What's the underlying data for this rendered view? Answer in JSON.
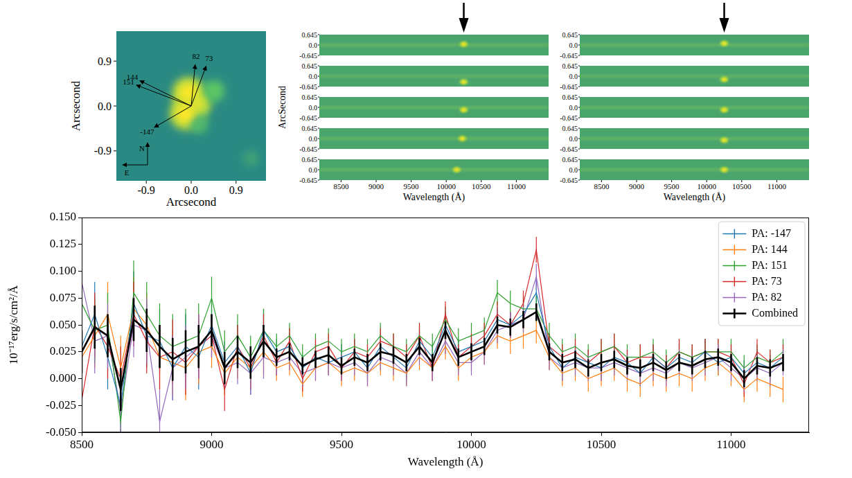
{
  "chart_data": [
    {
      "type": "image",
      "xlabel": "Arcsecond",
      "ylabel": "Arcsecond",
      "xlim": [
        -1.5,
        1.5
      ],
      "ylim": [
        -1.5,
        1.5
      ],
      "xticks": [
        -0.9,
        {
          "value": 0,
          "label": "0.0"
        },
        0.9
      ],
      "yticks": [
        -0.9,
        {
          "value": 0,
          "label": "0.0"
        },
        0.9
      ],
      "sources": [
        {
          "x": -0.05,
          "y": 0.25,
          "brightness": 1.0
        },
        {
          "x": -0.1,
          "y": -0.15,
          "brightness": 1.0
        },
        {
          "x": 0.1,
          "y": 0.05,
          "brightness": 0.9
        },
        {
          "x": 0.45,
          "y": 0.3,
          "brightness": 0.5
        },
        {
          "x": 0.15,
          "y": -0.35,
          "brightness": 0.4
        },
        {
          "x": 1.2,
          "y": -1.05,
          "brightness": 0.2
        }
      ],
      "arrows": [
        {
          "label": "82",
          "x": 0.08,
          "y": 0.83
        },
        {
          "label": "73",
          "x": 0.3,
          "y": 0.8
        },
        {
          "label": "144",
          "x": -1.03,
          "y": 0.51
        },
        {
          "label": "151",
          "x": -1.1,
          "y": 0.42
        },
        {
          "label": "-147",
          "x": -0.74,
          "y": -0.43
        }
      ],
      "compass": {
        "north": "N",
        "east": "E"
      }
    },
    {
      "type": "image_grid",
      "xlabel": "Wavelength (Å)",
      "ylabel": "ArcSecond",
      "xlim": [
        8190,
        11460
      ],
      "ylim": [
        -0.645,
        0.645
      ],
      "xticks": [
        8500,
        9000,
        9500,
        10000,
        10500,
        11000
      ],
      "yticks": [
        0.645,
        {
          "value": 0,
          "label": "0.0"
        },
        -0.645
      ],
      "arrow_x": 10250,
      "spots": [
        {
          "x": 10250,
          "y": 0.05
        },
        {
          "x": 10250,
          "y": -0.35
        },
        {
          "x": 10250,
          "y": -0.15
        },
        {
          "x": 10230,
          "y": 0.0
        },
        {
          "x": 10150,
          "y": 0.0
        }
      ]
    },
    {
      "type": "image_grid",
      "xlabel": "Wavelength (Å)",
      "xlim": [
        8190,
        11460
      ],
      "ylim": [
        -0.645,
        0.645
      ],
      "xticks": [
        8500,
        9000,
        9500,
        10000,
        10500,
        11000
      ],
      "yticks": [
        0.645,
        {
          "value": 0,
          "label": "0.0"
        },
        -0.645
      ],
      "arrow_x": 10250,
      "spots": [
        {
          "x": 10250,
          "y": 0.1
        },
        {
          "x": 10250,
          "y": -0.2
        },
        {
          "x": 10250,
          "y": -0.15
        },
        {
          "x": 10250,
          "y": -0.1
        },
        {
          "x": 10250,
          "y": 0.0
        }
      ]
    },
    {
      "type": "line",
      "xlabel": "Wavelength (Å)",
      "ylabel": "10⁻¹⁷erg/s/cm²/Å",
      "xlim": [
        8500,
        11300
      ],
      "ylim": [
        -0.05,
        0.15
      ],
      "xticks": [
        8500,
        9000,
        9500,
        10000,
        10500,
        11000
      ],
      "yticks": [
        {
          "value": -0.05,
          "label": "-0.050"
        },
        -0.025,
        {
          "value": 0,
          "label": "0.000"
        },
        0.025,
        {
          "value": 0.05,
          "label": "0.050"
        },
        0.075,
        {
          "value": 0.1,
          "label": "0.100"
        },
        0.125,
        {
          "value": 0.15,
          "label": "0.150"
        }
      ],
      "grid": false,
      "legend": "upper right",
      "x": [
        8500,
        8550,
        8600,
        8650,
        8700,
        8750,
        8800,
        8850,
        8900,
        8950,
        9000,
        9050,
        9100,
        9150,
        9200,
        9250,
        9300,
        9350,
        9400,
        9450,
        9500,
        9550,
        9600,
        9650,
        9700,
        9750,
        9800,
        9850,
        9900,
        9950,
        10000,
        10050,
        10100,
        10150,
        10200,
        10250,
        10300,
        10350,
        10400,
        10450,
        10500,
        10550,
        10600,
        10650,
        10700,
        10750,
        10800,
        10850,
        10900,
        10950,
        11000,
        11050,
        11100,
        11150,
        11200
      ],
      "series": [
        {
          "name": "PA: -147",
          "color": "#1f77b4",
          "values": [
            0.03,
            0.06,
            0.02,
            -0.025,
            0.07,
            0.04,
            0.035,
            0.01,
            0.03,
            0.02,
            0.05,
            0.015,
            0.03,
            0.005,
            0.045,
            0.025,
            0.03,
            0.01,
            0.02,
            0.015,
            0.02,
            0.025,
            0.01,
            0.03,
            0.02,
            0.01,
            0.035,
            0.02,
            0.05,
            0.025,
            0.03,
            0.035,
            0.055,
            0.05,
            0.06,
            0.08,
            0.03,
            0.01,
            0.02,
            0.015,
            0.01,
            0.02,
            0.015,
            0.005,
            0.02,
            0.01,
            0.02,
            0.015,
            0.025,
            0.015,
            0.02,
            0.005,
            0.015,
            0.01,
            0.02
          ],
          "errors": [
            0.03,
            0.03,
            0.03,
            0.03,
            0.03,
            0.03,
            0.03,
            0.03,
            0.03,
            0.03,
            0.02,
            0.02,
            0.02,
            0.02,
            0.02,
            0.012,
            0.012,
            0.012,
            0.012,
            0.012,
            0.012,
            0.012,
            0.012,
            0.012,
            0.012,
            0.012,
            0.012,
            0.012,
            0.012,
            0.012,
            0.012,
            0.012,
            0.012,
            0.012,
            0.012,
            0.012,
            0.012,
            0.012,
            0.012,
            0.012,
            0.012,
            0.012,
            0.012,
            0.012,
            0.012,
            0.012,
            0.012,
            0.012,
            0.012,
            0.012,
            0.012,
            0.012,
            0.012,
            0.012,
            0.012
          ]
        },
        {
          "name": "PA: 144",
          "color": "#ff7f0e",
          "values": [
            0.02,
            0.04,
            0.06,
            0.01,
            0.065,
            0.05,
            0.02,
            0.015,
            0.01,
            0.025,
            0.03,
            0.005,
            0.02,
            0.01,
            0.025,
            0.01,
            0.015,
            -0.005,
            0.01,
            0.015,
            0.005,
            0.01,
            0.005,
            0.015,
            0.01,
            0.005,
            0.02,
            0.01,
            0.03,
            0.01,
            0.02,
            0.025,
            0.04,
            0.035,
            0.04,
            0.045,
            0.02,
            0.005,
            0.01,
            0.0,
            0.005,
            0.01,
            0.0,
            -0.005,
            0.005,
            0.0,
            0.005,
            0.0,
            0.01,
            0.015,
            0.005,
            -0.01,
            0.0,
            -0.005,
            -0.01
          ],
          "errors": [
            0.03,
            0.03,
            0.03,
            0.03,
            0.03,
            0.03,
            0.03,
            0.03,
            0.03,
            0.03,
            0.02,
            0.02,
            0.02,
            0.02,
            0.02,
            0.012,
            0.012,
            0.012,
            0.012,
            0.012,
            0.012,
            0.012,
            0.012,
            0.012,
            0.012,
            0.012,
            0.012,
            0.012,
            0.012,
            0.012,
            0.012,
            0.012,
            0.012,
            0.012,
            0.012,
            0.012,
            0.012,
            0.012,
            0.012,
            0.012,
            0.012,
            0.012,
            0.012,
            0.012,
            0.012,
            0.012,
            0.012,
            0.012,
            0.012,
            0.012,
            0.012,
            0.012,
            0.012,
            0.012,
            0.012
          ]
        },
        {
          "name": "PA: 151",
          "color": "#2ca02c",
          "values": [
            0.07,
            0.045,
            0.05,
            -0.04,
            0.08,
            0.06,
            0.04,
            0.03,
            0.035,
            0.04,
            0.075,
            0.025,
            0.04,
            0.02,
            0.045,
            0.03,
            0.04,
            0.02,
            0.03,
            0.035,
            0.025,
            0.03,
            0.025,
            0.04,
            0.03,
            0.025,
            0.04,
            0.03,
            0.055,
            0.035,
            0.04,
            0.045,
            0.08,
            0.07,
            0.065,
            0.065,
            0.04,
            0.025,
            0.03,
            0.02,
            0.025,
            0.03,
            0.02,
            0.02,
            0.025,
            0.015,
            0.025,
            0.02,
            0.025,
            0.025,
            0.025,
            0.01,
            0.02,
            0.015,
            0.025
          ],
          "errors": [
            0.03,
            0.03,
            0.03,
            0.03,
            0.03,
            0.03,
            0.03,
            0.03,
            0.03,
            0.03,
            0.02,
            0.02,
            0.02,
            0.02,
            0.02,
            0.012,
            0.012,
            0.012,
            0.012,
            0.012,
            0.012,
            0.012,
            0.012,
            0.012,
            0.012,
            0.012,
            0.012,
            0.012,
            0.012,
            0.012,
            0.012,
            0.012,
            0.012,
            0.012,
            0.012,
            0.012,
            0.012,
            0.012,
            0.012,
            0.012,
            0.012,
            0.012,
            0.012,
            0.012,
            0.012,
            0.012,
            0.012,
            0.012,
            0.012,
            0.012,
            0.012,
            0.012,
            0.012,
            0.012,
            0.012
          ]
        },
        {
          "name": "PA: 73",
          "color": "#d62728",
          "values": [
            -0.02,
            0.05,
            0.03,
            0.0,
            0.06,
            0.035,
            0.02,
            0.025,
            0.015,
            0.03,
            0.04,
            -0.01,
            0.03,
            0.01,
            0.04,
            0.015,
            0.035,
            0.0,
            0.025,
            0.03,
            0.01,
            0.025,
            0.02,
            0.035,
            0.03,
            0.02,
            0.04,
            0.01,
            0.06,
            0.02,
            0.03,
            0.04,
            0.06,
            0.05,
            0.07,
            0.12,
            0.03,
            0.02,
            0.025,
            0.015,
            0.025,
            0.03,
            0.015,
            0.02,
            0.02,
            0.01,
            0.025,
            0.02,
            0.025,
            0.025,
            0.02,
            -0.005,
            0.025,
            0.015,
            0.02
          ],
          "errors": [
            0.03,
            0.03,
            0.03,
            0.03,
            0.03,
            0.03,
            0.03,
            0.03,
            0.03,
            0.03,
            0.02,
            0.02,
            0.02,
            0.02,
            0.02,
            0.012,
            0.012,
            0.012,
            0.012,
            0.012,
            0.012,
            0.012,
            0.012,
            0.012,
            0.012,
            0.012,
            0.012,
            0.012,
            0.012,
            0.012,
            0.012,
            0.012,
            0.012,
            0.012,
            0.012,
            0.012,
            0.012,
            0.012,
            0.012,
            0.012,
            0.012,
            0.012,
            0.012,
            0.012,
            0.012,
            0.012,
            0.012,
            0.012,
            0.012,
            0.012,
            0.012,
            0.012,
            0.012,
            0.012,
            0.012
          ]
        },
        {
          "name": "PA: 82",
          "color": "#9467bd",
          "values": [
            0.09,
            0.035,
            0.04,
            -0.03,
            0.05,
            0.045,
            -0.04,
            0.01,
            0.02,
            0.03,
            0.04,
            0.01,
            0.015,
            0.005,
            0.02,
            0.015,
            0.02,
            0.005,
            0.01,
            0.015,
            0.01,
            0.015,
            0.005,
            0.02,
            0.015,
            0.005,
            0.025,
            0.01,
            0.035,
            0.015,
            0.015,
            0.025,
            0.045,
            0.05,
            0.055,
            0.095,
            0.02,
            0.01,
            0.015,
            0.01,
            0.01,
            0.015,
            0.01,
            0.005,
            0.01,
            0.005,
            0.015,
            0.01,
            0.015,
            0.02,
            0.01,
            0.0,
            0.01,
            0.005,
            0.015
          ],
          "errors": [
            0.03,
            0.03,
            0.03,
            0.03,
            0.03,
            0.03,
            0.03,
            0.03,
            0.03,
            0.03,
            0.02,
            0.02,
            0.02,
            0.02,
            0.02,
            0.012,
            0.012,
            0.012,
            0.012,
            0.012,
            0.012,
            0.012,
            0.012,
            0.012,
            0.012,
            0.012,
            0.012,
            0.012,
            0.012,
            0.012,
            0.012,
            0.012,
            0.012,
            0.012,
            0.012,
            0.012,
            0.012,
            0.012,
            0.012,
            0.012,
            0.012,
            0.012,
            0.012,
            0.012,
            0.012,
            0.012,
            0.012,
            0.012,
            0.012,
            0.012,
            0.012,
            0.012,
            0.012,
            0.012,
            0.012
          ]
        },
        {
          "name": "Combined",
          "color": "#000000",
          "values": [
            0.025,
            0.048,
            0.04,
            -0.01,
            0.055,
            0.045,
            0.03,
            0.018,
            0.025,
            0.03,
            0.045,
            0.01,
            0.025,
            0.015,
            0.035,
            0.02,
            0.025,
            0.012,
            0.018,
            0.022,
            0.012,
            0.02,
            0.015,
            0.025,
            0.022,
            0.015,
            0.03,
            0.015,
            0.045,
            0.02,
            0.025,
            0.03,
            0.05,
            0.048,
            0.055,
            0.062,
            0.025,
            0.015,
            0.018,
            0.01,
            0.015,
            0.018,
            0.012,
            0.01,
            0.015,
            0.008,
            0.015,
            0.012,
            0.018,
            0.02,
            0.015,
            0.0,
            0.012,
            0.01,
            0.015
          ],
          "errors": [
            0.02,
            0.02,
            0.02,
            0.02,
            0.02,
            0.02,
            0.02,
            0.02,
            0.02,
            0.02,
            0.015,
            0.015,
            0.015,
            0.015,
            0.015,
            0.008,
            0.008,
            0.008,
            0.008,
            0.008,
            0.008,
            0.008,
            0.008,
            0.008,
            0.008,
            0.008,
            0.008,
            0.008,
            0.008,
            0.008,
            0.008,
            0.008,
            0.008,
            0.008,
            0.008,
            0.008,
            0.008,
            0.008,
            0.008,
            0.008,
            0.008,
            0.008,
            0.008,
            0.008,
            0.008,
            0.008,
            0.008,
            0.008,
            0.008,
            0.008,
            0.008,
            0.008,
            0.008,
            0.008,
            0.008
          ]
        }
      ]
    }
  ]
}
